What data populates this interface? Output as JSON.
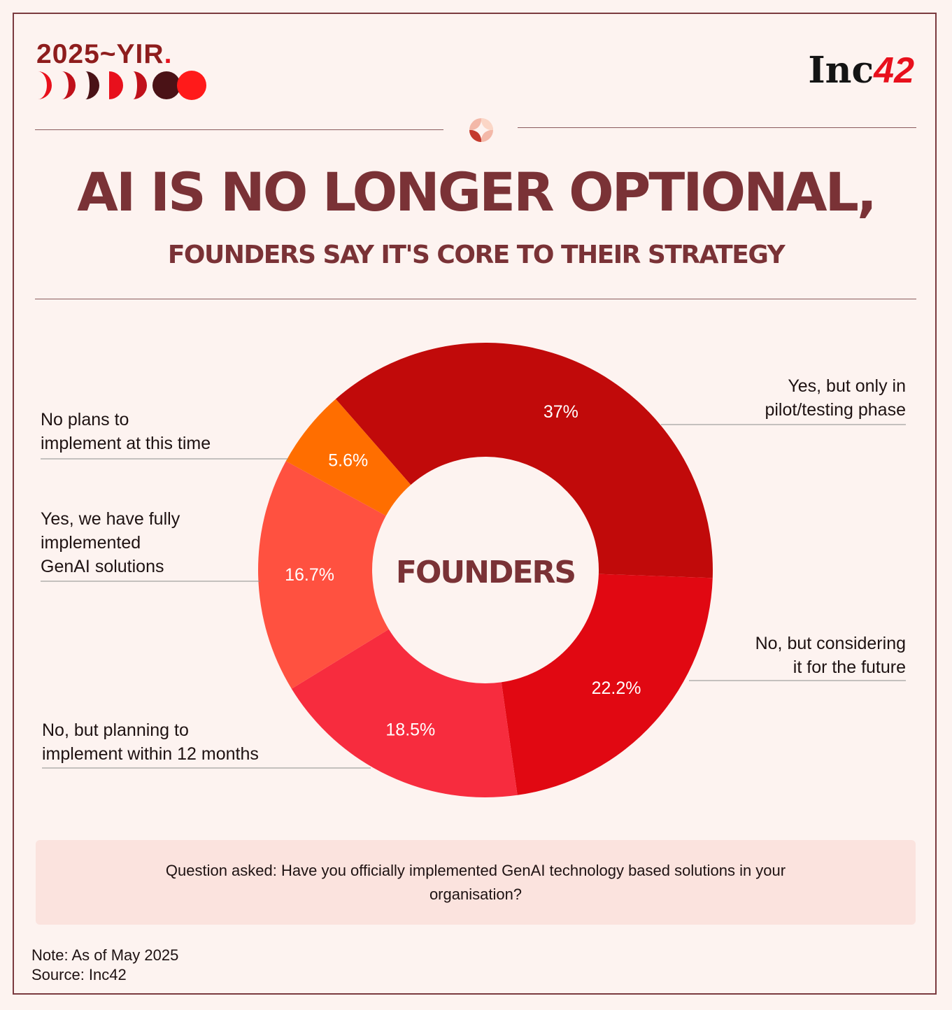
{
  "header": {
    "yir_text": "2025~YIR",
    "yir_dot": ".",
    "brand_text": "Inc",
    "brand_num": "42"
  },
  "title": "AI IS NO LONGER OPTIONAL,",
  "subtitle": "FOUNDERS SAY IT'S CORE TO THEIR STRATEGY",
  "chart_data": {
    "type": "pie",
    "center_label": "FOUNDERS",
    "slices": [
      {
        "label": "Yes, but only in\npilot/testing phase",
        "value": 37,
        "value_label": "37%",
        "color": "#c10a0a"
      },
      {
        "label": "No, but considering\nit for the future",
        "value": 22.2,
        "value_label": "22.2%",
        "color": "#e10812"
      },
      {
        "label": "No, but planning to\nimplement within 12 months",
        "value": 18.5,
        "value_label": "18.5%",
        "color": "#f72c3e"
      },
      {
        "label": "Yes, we have fully\nimplemented\nGenAI solutions",
        "value": 16.7,
        "value_label": "16.7%",
        "color": "#ff5140"
      },
      {
        "label": "No plans to\nimplement at this time",
        "value": 5.6,
        "value_label": "5.6%",
        "color": "#ff6e00"
      }
    ]
  },
  "question": "Question asked: Have you officially implemented GenAI technology based solutions in your organisation?",
  "note": "Note: As of May 2025",
  "source": "Source: Inc42"
}
